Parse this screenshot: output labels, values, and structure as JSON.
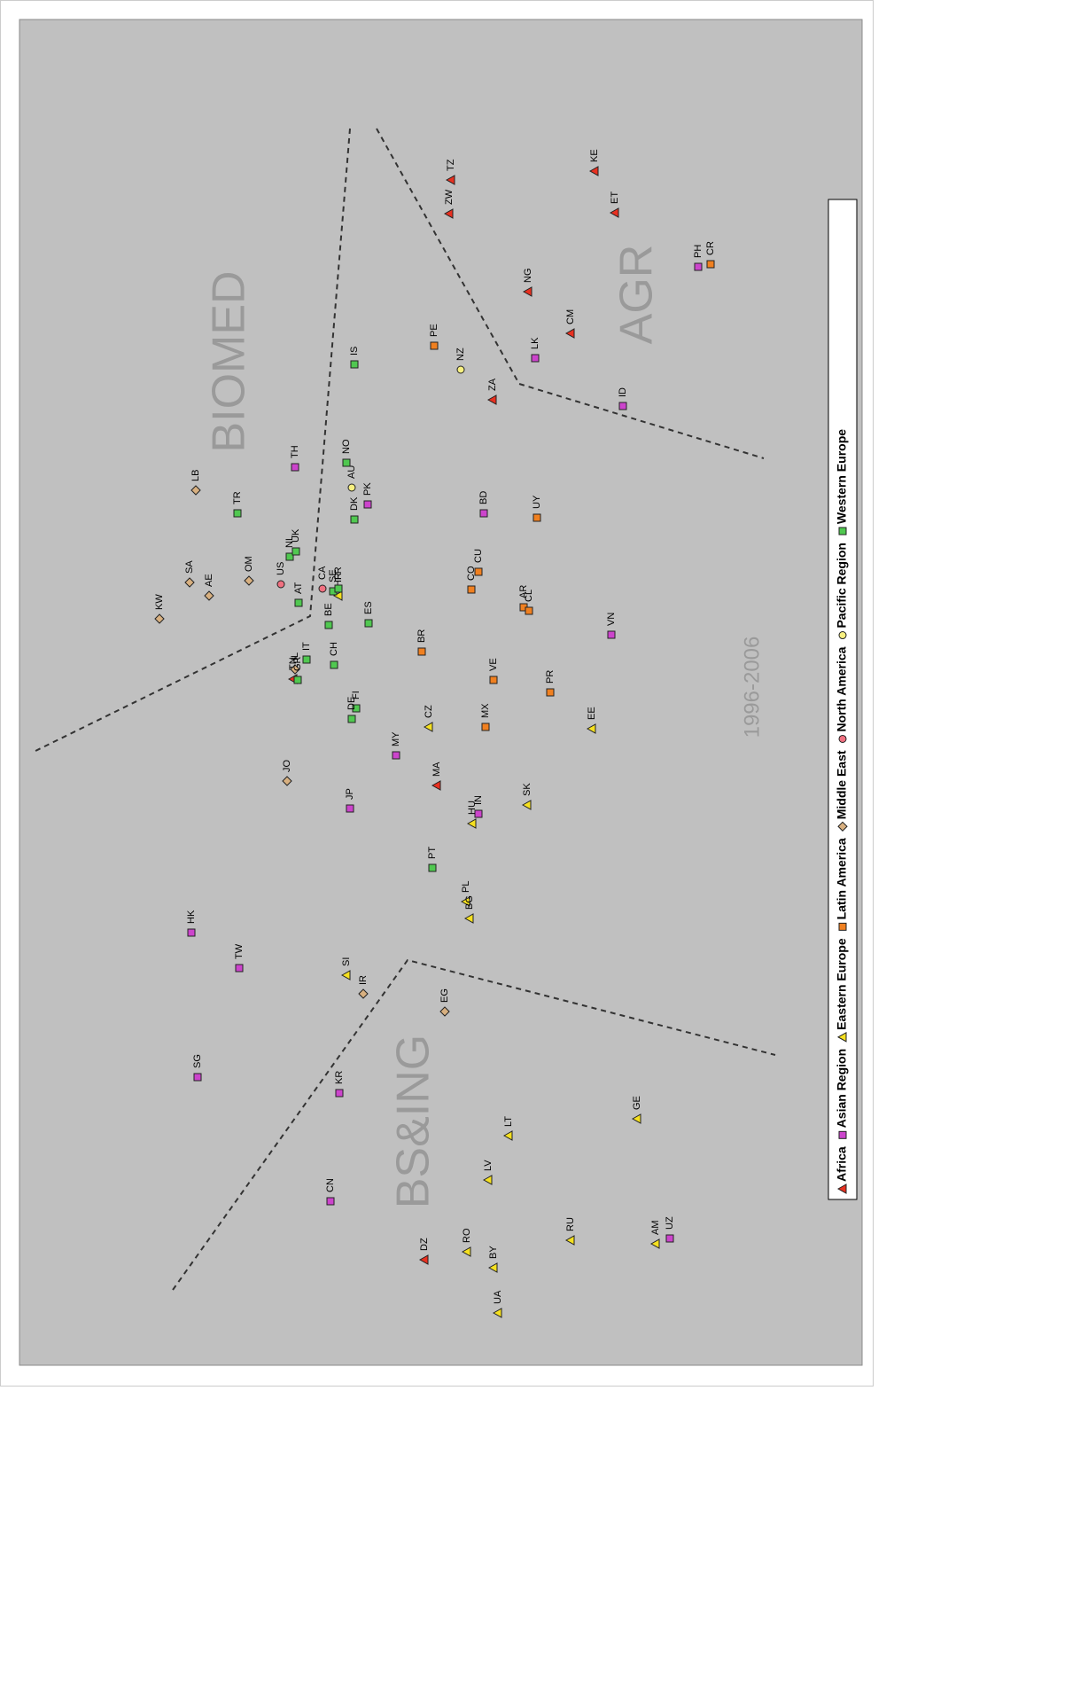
{
  "chart_data": {
    "type": "scatter",
    "xlim": [
      0,
      1518
    ],
    "ylim": [
      0,
      951
    ],
    "annotations": [
      "BIOMED",
      "AGR",
      "BS&ING",
      "1996-2006"
    ],
    "series": [
      {
        "name": "Africa",
        "color": "#e83020",
        "marker": "triangle",
        "labels": [
          "KE",
          "ET",
          "TZ",
          "ZW",
          "NG",
          "CM",
          "ZA",
          "MA",
          "DZ",
          "TN"
        ],
        "x": [
          1347,
          1300,
          1337,
          1299,
          1211,
          1164,
          1089,
          654,
          119,
          774
        ],
        "y": [
          302,
          279,
          464,
          466,
          377,
          329,
          417,
          480,
          494,
          642
        ]
      },
      {
        "name": "Asian Region",
        "color": "#cc44cc",
        "marker": "square",
        "labels": [
          "PH",
          "LK",
          "ID",
          "TH",
          "PK",
          "BD",
          "VN",
          "MY",
          "JP",
          "IN",
          "HK",
          "TW",
          "SG",
          "KR",
          "CN",
          "UZ"
        ],
        "x": [
          1239,
          1136,
          1082,
          1013,
          971,
          961,
          824,
          688,
          628,
          622,
          488,
          448,
          325,
          307,
          185,
          143
        ],
        "y": [
          185,
          369,
          270,
          640,
          558,
          427,
          283,
          526,
          578,
          433,
          757,
          703,
          750,
          590,
          600,
          217
        ]
      },
      {
        "name": "Eastern Europe",
        "color": "#f5e020",
        "marker": "triangle",
        "labels": [
          "CZ",
          "EE",
          "SK",
          "HU",
          "PL",
          "BG",
          "SI",
          "LT",
          "LV",
          "GE",
          "RO",
          "BY",
          "UA",
          "RU",
          "AM",
          "HR"
        ],
        "x": [
          720,
          718,
          632,
          611,
          523,
          504,
          440,
          259,
          209,
          278,
          128,
          110,
          59,
          141,
          137,
          868
        ],
        "y": [
          489,
          305,
          378,
          440,
          447,
          443,
          582,
          399,
          422,
          254,
          446,
          416,
          411,
          329,
          233,
          591
        ]
      },
      {
        "name": "Latin America",
        "color": "#f08020",
        "marker": "square",
        "labels": [
          "CR",
          "PE",
          "UY",
          "CU",
          "CO",
          "AR",
          "CL",
          "BR",
          "VE",
          "MX",
          "PR"
        ],
        "x": [
          1242,
          1150,
          956,
          895,
          875,
          855,
          851,
          805,
          773,
          720,
          759
        ],
        "y": [
          171,
          483,
          367,
          433,
          441,
          382,
          376,
          497,
          416,
          425,
          352
        ]
      },
      {
        "name": "Middle East",
        "color": "#d8b080",
        "marker": "diamond",
        "labels": [
          "LB",
          "SA",
          "AE",
          "OM",
          "KW",
          "JO",
          "IR",
          "EG",
          "IL"
        ],
        "x": [
          987,
          883,
          868,
          885,
          842,
          659,
          419,
          399,
          785
        ],
        "y": [
          752,
          759,
          737,
          692,
          793,
          649,
          563,
          471,
          640
        ]
      },
      {
        "name": "North America",
        "color": "#f07080",
        "marker": "circle",
        "labels": [
          "US",
          "CA"
        ],
        "x": [
          881,
          876
        ],
        "y": [
          656,
          609
        ]
      },
      {
        "name": "Pacific Region",
        "color": "#f8f080",
        "marker": "circle",
        "labels": [
          "NZ",
          "AU"
        ],
        "x": [
          1123,
          990
        ],
        "y": [
          453,
          576
        ]
      },
      {
        "name": "Western Europe",
        "color": "#50c850",
        "marker": "square",
        "labels": [
          "IS",
          "NO",
          "DK",
          "TR",
          "NL",
          "UK",
          "AT",
          "BE",
          "SE",
          "FR",
          "CH",
          "ES",
          "IT",
          "GR",
          "FI",
          "DE",
          "PT"
        ],
        "x": [
          1129,
          1018,
          954,
          961,
          912,
          918,
          860,
          835,
          873,
          876,
          790,
          837,
          796,
          773,
          741,
          729,
          561
        ],
        "y": [
          573,
          582,
          573,
          705,
          646,
          639,
          636,
          602,
          597,
          591,
          596,
          557,
          627,
          637,
          571,
          576,
          485
        ]
      }
    ]
  }
}
